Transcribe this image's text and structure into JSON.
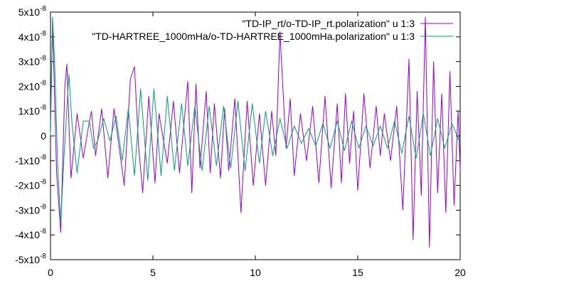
{
  "chart_data": {
    "type": "line",
    "title": "",
    "xlabel": "",
    "ylabel": "",
    "xlim": [
      0,
      20
    ],
    "ylim": [
      -5e-08,
      5e-08
    ],
    "grid": false,
    "legend_position": "top-right",
    "x_ticks": [
      {
        "value": 0,
        "label": "0"
      },
      {
        "value": 5,
        "label": "5"
      },
      {
        "value": 10,
        "label": "10"
      },
      {
        "value": 15,
        "label": "15"
      },
      {
        "value": 20,
        "label": "20"
      }
    ],
    "y_ticks": [
      {
        "value": -5e-08,
        "mant": "-5x10",
        "exp": "-8"
      },
      {
        "value": -4e-08,
        "mant": "-4x10",
        "exp": "-8"
      },
      {
        "value": -3e-08,
        "mant": "-3x10",
        "exp": "-8"
      },
      {
        "value": -2e-08,
        "mant": "-2x10",
        "exp": "-8"
      },
      {
        "value": -1e-08,
        "mant": "-1x10",
        "exp": "-8"
      },
      {
        "value": 0,
        "mant": "0",
        "exp": ""
      },
      {
        "value": 1e-08,
        "mant": "1x10",
        "exp": "-8"
      },
      {
        "value": 2e-08,
        "mant": "2x10",
        "exp": "-8"
      },
      {
        "value": 3e-08,
        "mant": "3x10",
        "exp": "-8"
      },
      {
        "value": 4e-08,
        "mant": "4x10",
        "exp": "-8"
      },
      {
        "value": 5e-08,
        "mant": "5x10",
        "exp": "-8"
      }
    ],
    "series": [
      {
        "name": "\"TD-IP_rt/o-TD-IP_rt.polarization\" u 1:3",
        "color": "#9400d3",
        "x": [
          0,
          0.1,
          0.2,
          0.3,
          0.5,
          0.7,
          0.8,
          0.9,
          1.0,
          1.3,
          1.6,
          1.9,
          2.0,
          2.2,
          2.5,
          2.8,
          3.1,
          3.6,
          3.9,
          4.1,
          4.3,
          4.5,
          4.8,
          5.1,
          5.3,
          5.7,
          6.0,
          6.3,
          6.7,
          6.9,
          7.1,
          7.3,
          7.6,
          7.8,
          8.0,
          8.3,
          8.5,
          8.7,
          9.0,
          9.3,
          9.6,
          9.9,
          10.2,
          10.5,
          10.8,
          11.0,
          11.2,
          11.5,
          11.7,
          11.9,
          12.2,
          12.5,
          12.8,
          13.1,
          13.4,
          13.7,
          14.0,
          14.2,
          14.4,
          14.6,
          14.8,
          15.0,
          15.3,
          15.6,
          15.9,
          16.1,
          16.3,
          16.6,
          16.9,
          17.2,
          17.5,
          17.7,
          17.9,
          18.1,
          18.3,
          18.5,
          18.7,
          18.9,
          19.1,
          19.3,
          19.5,
          19.7,
          19.9,
          20.0
        ],
        "values": [
          5e-09,
          4.6e-08,
          1.5e-08,
          -1.5e-08,
          -3.9e-08,
          2e-08,
          2.9e-08,
          5e-09,
          -1.7e-08,
          9e-09,
          -9e-09,
          6e-09,
          1e-08,
          -8e-09,
          1.1e-08,
          -1.7e-08,
          1.1e-08,
          -2e-08,
          2.3e-08,
          2.8e-08,
          -4e-09,
          -2.3e-08,
          1.6e-08,
          -1.9e-08,
          9e-09,
          -1.1e-08,
          1.4e-08,
          -1.5e-08,
          2.2e-08,
          -2.3e-08,
          2.1e-08,
          -1.3e-08,
          1.8e-08,
          -1.5e-08,
          1.3e-08,
          -1.7e-08,
          1.1e-08,
          -1.4e-08,
          1.5e-08,
          -3.1e-08,
          1.4e-08,
          -2e-08,
          9e-09,
          -2e-08,
          1e-08,
          -8e-09,
          4.2e-08,
          -5e-09,
          1.5e-08,
          -1.6e-08,
          9e-09,
          -1e-08,
          1.2e-08,
          -1.9e-08,
          1.6e-08,
          -2.1e-08,
          1.3e-08,
          -1.9e-08,
          1.7e-08,
          -1.1e-08,
          1e-08,
          -2.2e-08,
          1.7e-08,
          -1.3e-08,
          1.2e-08,
          -8e-09,
          9e-09,
          -1e-08,
          1.2e-08,
          -3e-08,
          3.1e-08,
          -4.2e-08,
          1.8e-08,
          -2.4e-08,
          4.8e-08,
          -4.5e-08,
          3e-08,
          -2.3e-08,
          1.7e-08,
          -3.1e-08,
          2.6e-08,
          -2.8e-08,
          1e-08,
          -1.4e-08
        ]
      },
      {
        "name": "\"TD-HARTREE_1000mHa/o-TD-HARTREE_1000mHa.polarization\" u 1:3",
        "color": "#009e73",
        "x": [
          0,
          0.1,
          0.2,
          0.35,
          0.5,
          0.65,
          0.9,
          1.05,
          1.3,
          1.6,
          1.9,
          2.1,
          2.3,
          2.6,
          2.9,
          3.2,
          3.5,
          3.8,
          4.1,
          4.4,
          4.75,
          5.05,
          5.4,
          5.7,
          6.05,
          6.4,
          6.7,
          7.05,
          7.4,
          7.75,
          8.1,
          8.45,
          8.8,
          9.15,
          9.5,
          9.85,
          10.2,
          10.5,
          10.85,
          11.2,
          11.55,
          11.9,
          12.25,
          12.6,
          12.95,
          13.3,
          13.65,
          14.0,
          14.35,
          14.7,
          15.05,
          15.4,
          15.75,
          16.1,
          16.45,
          16.8,
          17.15,
          17.5,
          17.85,
          18.2,
          18.55,
          18.9,
          19.25,
          19.6,
          20.0
        ],
        "values": [
          0,
          4.8e-08,
          3e-08,
          -1.2e-08,
          -3.5e-08,
          -1e-08,
          2.5e-08,
          5e-09,
          -1.5e-08,
          6e-09,
          6e-09,
          -5e-09,
          -2e-09,
          7e-09,
          -2e-09,
          8e-09,
          -1e-08,
          1.1e-08,
          -1.6e-08,
          1.9e-08,
          -1.8e-08,
          1.9e-08,
          -1.6e-08,
          1.6e-08,
          -1.4e-08,
          1.3e-08,
          -1.2e-08,
          1.2e-08,
          -1.4e-08,
          1.2e-08,
          -1.2e-08,
          1.2e-08,
          -1.3e-08,
          1.4e-08,
          -1.4e-08,
          1.3e-08,
          -1.1e-08,
          1e-08,
          -8e-09,
          7e-09,
          -5e-09,
          4e-09,
          -3e-09,
          3e-09,
          -4e-09,
          5e-09,
          -5e-09,
          6e-09,
          -6e-09,
          6e-09,
          -5e-09,
          4e-09,
          -4e-09,
          4e-09,
          -5e-09,
          6e-09,
          -7e-09,
          8e-09,
          -9e-09,
          9e-09,
          -8e-09,
          7e-09,
          -5e-09,
          5e-09,
          -3e-09
        ]
      }
    ]
  }
}
